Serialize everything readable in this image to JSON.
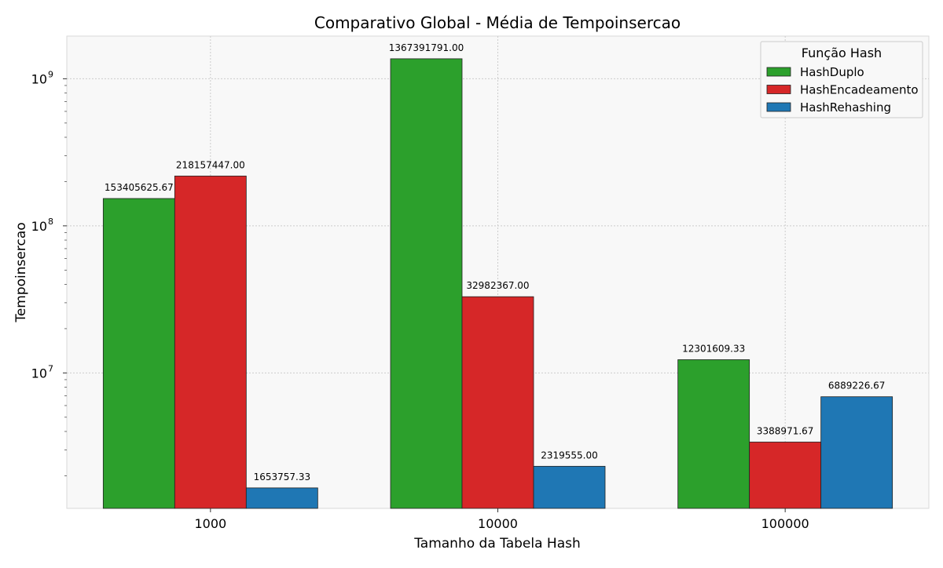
{
  "chart_data": {
    "type": "bar",
    "title": "Comparativo Global - Média de Tempoinsercao",
    "xlabel": "Tamanho da Tabela Hash",
    "ylabel": "Tempoinsercao",
    "yscale": "log",
    "ylim": [
      1200000,
      1950000000
    ],
    "yticks": [
      {
        "value": 10000000,
        "base": "10",
        "exp": "7"
      },
      {
        "value": 100000000,
        "base": "10",
        "exp": "8"
      },
      {
        "value": 1000000000,
        "base": "10",
        "exp": "9"
      }
    ],
    "categories": [
      "1000",
      "10000",
      "100000"
    ],
    "series": [
      {
        "name": "HashDuplo",
        "color": "#2ca02c",
        "values": [
          153405625.67,
          1367391791.0,
          12301609.33
        ],
        "labels": [
          "153405625.67",
          "1367391791.00",
          "12301609.33"
        ]
      },
      {
        "name": "HashEncadeamento",
        "color": "#d62728",
        "values": [
          218157447.0,
          32982367.0,
          3388971.67
        ],
        "labels": [
          "218157447.00",
          "32982367.00",
          "3388971.67"
        ]
      },
      {
        "name": "HashRehashing",
        "color": "#1f77b4",
        "values": [
          1653757.33,
          2319555.0,
          6889226.67
        ],
        "labels": [
          "1653757.33",
          "2319555.00",
          "6889226.67"
        ]
      }
    ],
    "legend": {
      "title": "Função Hash",
      "position": "top-right"
    },
    "grid": true,
    "plot_background": "#f8f8f8"
  }
}
